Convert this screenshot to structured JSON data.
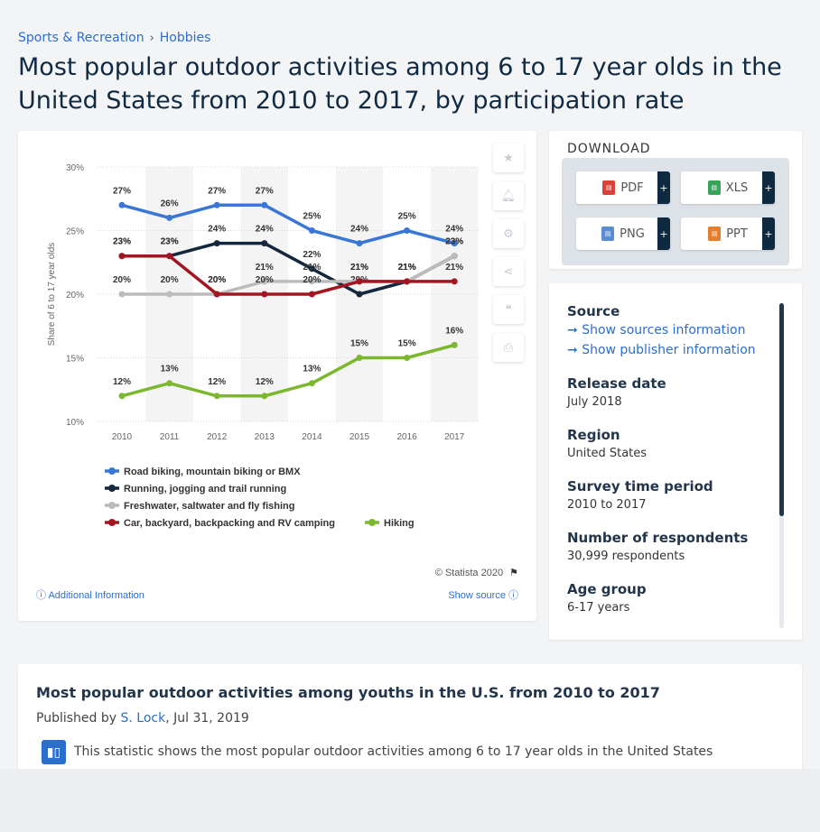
{
  "breadcrumb": {
    "items": [
      "Sports & Recreation",
      "Hobbies"
    ],
    "separator": "›"
  },
  "page_title": "Most popular outdoor activities among 6 to 17 year olds in the United States from 2010 to 2017, by participation rate",
  "chart_tools": {
    "icons": [
      "star-icon",
      "bell-icon",
      "gear-icon",
      "share-icon",
      "quote-icon",
      "print-icon"
    ]
  },
  "chart_data": {
    "type": "line",
    "title": "",
    "xlabel": "",
    "ylabel": "Share of 6 to 17 year olds",
    "ylim": [
      10,
      30
    ],
    "yticks": [
      "10%",
      "15%",
      "20%",
      "25%",
      "30%"
    ],
    "categories": [
      "2010",
      "2011",
      "2012",
      "2013",
      "2014",
      "2015",
      "2016",
      "2017"
    ],
    "grid": true,
    "legend_position": "bottom",
    "series": [
      {
        "name": "Road biking, mountain biking or BMX",
        "color": "#3a77d5",
        "values": [
          27,
          26,
          27,
          27,
          25,
          24,
          25,
          24
        ],
        "labels": [
          "27%",
          "26%",
          "27%",
          "27%",
          "25%",
          "24%",
          "25%",
          "24%"
        ]
      },
      {
        "name": "Running, jogging and trail running",
        "color": "#14283d",
        "values": [
          23,
          23,
          24,
          24,
          22,
          20,
          21,
          23
        ],
        "labels": [
          "23%",
          "23%",
          "24%",
          "24%",
          "22%",
          "20%",
          "21%",
          "23%"
        ]
      },
      {
        "name": "Freshwater, saltwater and fly fishing",
        "color": "#bcbcbc",
        "values": [
          20,
          20,
          20,
          21,
          21,
          21,
          21,
          23
        ],
        "labels": [
          "20%",
          "20%",
          "20%",
          "21%",
          "21%",
          "21%",
          "21%",
          "23%"
        ]
      },
      {
        "name": "Car, backyard, backpacking and RV camping",
        "color": "#a31621",
        "values": [
          23,
          23,
          20,
          20,
          20,
          21,
          21,
          21
        ],
        "labels": [
          "23%",
          "23%",
          "20%",
          "20%",
          "20%",
          "21%",
          "21%",
          "21%"
        ]
      },
      {
        "name": "Hiking",
        "color": "#7cb82f",
        "values": [
          12,
          13,
          12,
          12,
          13,
          15,
          15,
          16
        ],
        "labels": [
          "12%",
          "13%",
          "12%",
          "12%",
          "13%",
          "15%",
          "15%",
          "16%"
        ]
      }
    ]
  },
  "chart_footer": {
    "copyright": "© Statista 2020",
    "additional_info": "Additional Information",
    "show_source": "Show source"
  },
  "download": {
    "title": "DOWNLOAD",
    "buttons": [
      {
        "label": "PDF",
        "color": "#d9413a"
      },
      {
        "label": "XLS",
        "color": "#3aa35a"
      },
      {
        "label": "PNG",
        "color": "#5b8bd0"
      },
      {
        "label": "PPT",
        "color": "#e57d2c"
      }
    ],
    "plus": "+"
  },
  "info": {
    "source_heading": "Source",
    "show_sources": "Show sources information",
    "show_publisher": "Show publisher information",
    "release_heading": "Release date",
    "release_value": "July 2018",
    "region_heading": "Region",
    "region_value": "United States",
    "survey_heading": "Survey time period",
    "survey_value": "2010 to 2017",
    "respondents_heading": "Number of respondents",
    "respondents_value": "30,999 respondents",
    "age_heading": "Age group",
    "age_value": "6-17 years"
  },
  "article": {
    "title": "Most popular outdoor activities among youths in the U.S. from 2010 to 2017",
    "published_prefix": "Published by",
    "author": "S. Lock",
    "date": ", Jul 31, 2019",
    "text": "This statistic shows the most popular outdoor activities among 6 to 17 year olds in the United States"
  }
}
